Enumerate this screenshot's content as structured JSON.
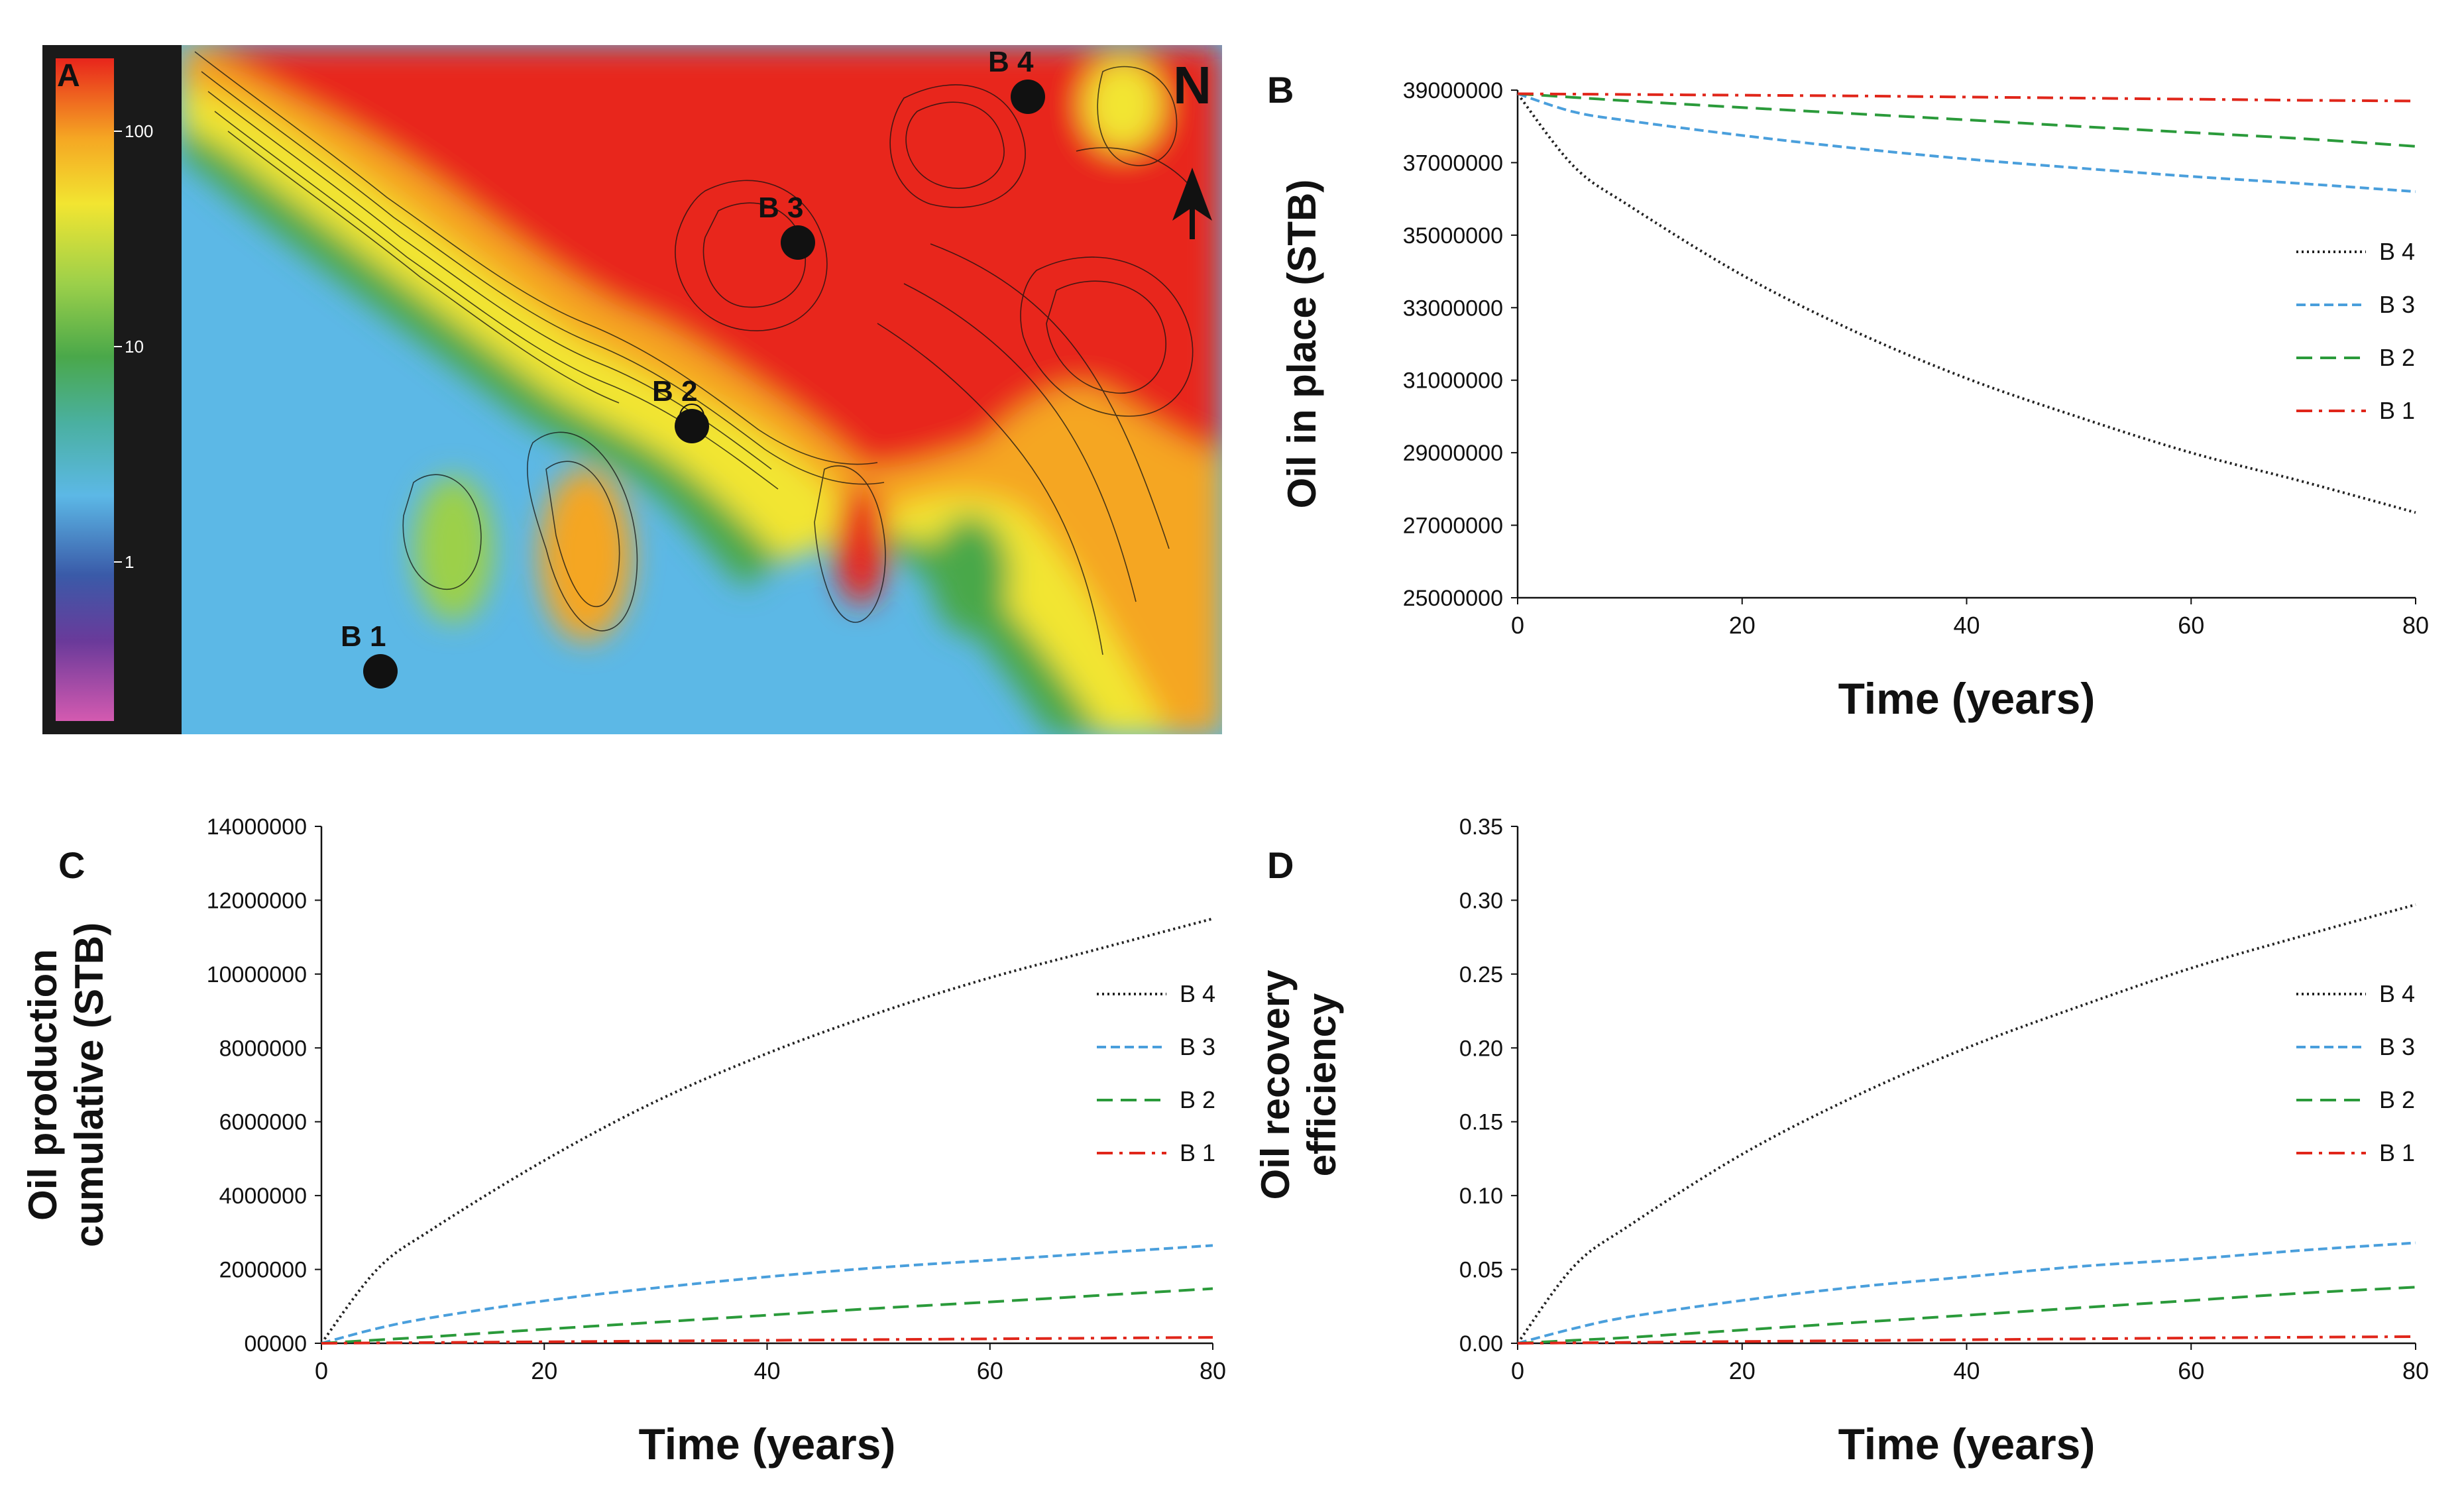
{
  "panel_a": {
    "letter": "A",
    "north_label": "N",
    "colorbar_ticks": [
      "100",
      "10",
      "1"
    ],
    "locations": [
      {
        "label": "B 1",
        "x": 5,
        "y": 55
      },
      {
        "label": "B 2",
        "x": 62,
        "y": 48
      },
      {
        "label": "B 3",
        "x": 88,
        "y": 26
      },
      {
        "label": "B 4",
        "x": 112,
        "y": 4
      }
    ],
    "colors": {
      "high": "#e8251c",
      "mid": "#f2e531",
      "low": "#58b84a",
      "water": "#5cb8e6",
      "colorbar_bg": "#1a1a1a"
    }
  },
  "chart_data": [
    {
      "id": "B",
      "type": "line",
      "title": "",
      "panel_letter": "B",
      "xlabel": "Time (years)",
      "ylabel": "Oil in place (STB)",
      "xlim": [
        0,
        80
      ],
      "ylim": [
        25000000,
        39000000
      ],
      "xticks": [
        "0",
        "20",
        "40",
        "60",
        "80"
      ],
      "yticks": [
        "25000000",
        "27000000",
        "29000000",
        "31000000",
        "33000000",
        "35000000",
        "37000000",
        "39000000"
      ],
      "legend_position": "right",
      "x": [
        0,
        5,
        10,
        20,
        30,
        40,
        50,
        60,
        70,
        80
      ],
      "series": [
        {
          "name": "B 4",
          "color": "#222222",
          "style": "dotted",
          "values": [
            38900000,
            36900000,
            35800000,
            33900000,
            32350000,
            31050000,
            29980000,
            29000000,
            28200000,
            27350000
          ]
        },
        {
          "name": "B 3",
          "color": "#4a9fdc",
          "style": "dashed",
          "values": [
            38900000,
            38400000,
            38150000,
            37750000,
            37400000,
            37100000,
            36850000,
            36620000,
            36420000,
            36200000
          ]
        },
        {
          "name": "B 2",
          "color": "#2a9a3a",
          "style": "longdash",
          "values": [
            38900000,
            38800000,
            38700000,
            38520000,
            38350000,
            38180000,
            38000000,
            37830000,
            37660000,
            37450000
          ]
        },
        {
          "name": "B 1",
          "color": "#e0261a",
          "style": "dashdot",
          "values": [
            38900000,
            38890000,
            38880000,
            38860000,
            38840000,
            38810000,
            38780000,
            38750000,
            38720000,
            38700000
          ]
        }
      ]
    },
    {
      "id": "C",
      "type": "line",
      "title": "",
      "panel_letter": "C",
      "xlabel": "Time (years)",
      "ylabel_lines": [
        "Oil production",
        "cumulative (STB)"
      ],
      "xlim": [
        0,
        80
      ],
      "ylim": [
        0,
        14000000
      ],
      "xticks": [
        "0",
        "20",
        "40",
        "60",
        "80"
      ],
      "yticks": [
        "00000",
        "2000000",
        "4000000",
        "6000000",
        "8000000",
        "10000000",
        "12000000",
        "14000000"
      ],
      "legend_position": "right",
      "x": [
        0,
        5,
        10,
        20,
        30,
        40,
        50,
        60,
        70,
        80
      ],
      "series": [
        {
          "name": "B 4",
          "color": "#222222",
          "style": "dotted",
          "values": [
            0,
            2000000,
            3100000,
            4950000,
            6550000,
            7850000,
            8950000,
            9900000,
            10700000,
            11500000
          ]
        },
        {
          "name": "B 3",
          "color": "#4a9fdc",
          "style": "dashed",
          "values": [
            0,
            400000,
            700000,
            1150000,
            1500000,
            1800000,
            2050000,
            2250000,
            2450000,
            2650000
          ]
        },
        {
          "name": "B 2",
          "color": "#2a9a3a",
          "style": "longdash",
          "values": [
            0,
            90000,
            180000,
            380000,
            570000,
            760000,
            950000,
            1120000,
            1300000,
            1480000
          ]
        },
        {
          "name": "B 1",
          "color": "#e0261a",
          "style": "dashdot",
          "values": [
            0,
            10000,
            20000,
            40000,
            60000,
            80000,
            100000,
            120000,
            140000,
            160000
          ]
        }
      ]
    },
    {
      "id": "D",
      "type": "line",
      "title": "",
      "panel_letter": "D",
      "xlabel": "Time (years)",
      "ylabel_lines": [
        "Oil recovery",
        "efficiency"
      ],
      "xlim": [
        0,
        80
      ],
      "ylim": [
        0,
        0.35
      ],
      "xticks": [
        "0",
        "20",
        "40",
        "60",
        "80"
      ],
      "yticks": [
        "0.00",
        "0.05",
        "0.10",
        "0.15",
        "0.20",
        "0.25",
        "0.30",
        "0.35"
      ],
      "legend_position": "right",
      "x": [
        0,
        5,
        10,
        20,
        30,
        40,
        50,
        60,
        70,
        80
      ],
      "series": [
        {
          "name": "B 4",
          "color": "#222222",
          "style": "dotted",
          "values": [
            0,
            0.052,
            0.08,
            0.128,
            0.167,
            0.2,
            0.228,
            0.254,
            0.276,
            0.297
          ]
        },
        {
          "name": "B 3",
          "color": "#4a9fdc",
          "style": "dashed",
          "values": [
            0,
            0.01,
            0.018,
            0.029,
            0.038,
            0.045,
            0.052,
            0.057,
            0.063,
            0.068
          ]
        },
        {
          "name": "B 2",
          "color": "#2a9a3a",
          "style": "longdash",
          "values": [
            0,
            0.002,
            0.004,
            0.009,
            0.014,
            0.019,
            0.024,
            0.029,
            0.034,
            0.038
          ]
        },
        {
          "name": "B 1",
          "color": "#e0261a",
          "style": "dashdot",
          "values": [
            0,
            0.0003,
            0.0006,
            0.0012,
            0.0018,
            0.0024,
            0.003,
            0.0036,
            0.0041,
            0.0045
          ]
        }
      ]
    }
  ]
}
